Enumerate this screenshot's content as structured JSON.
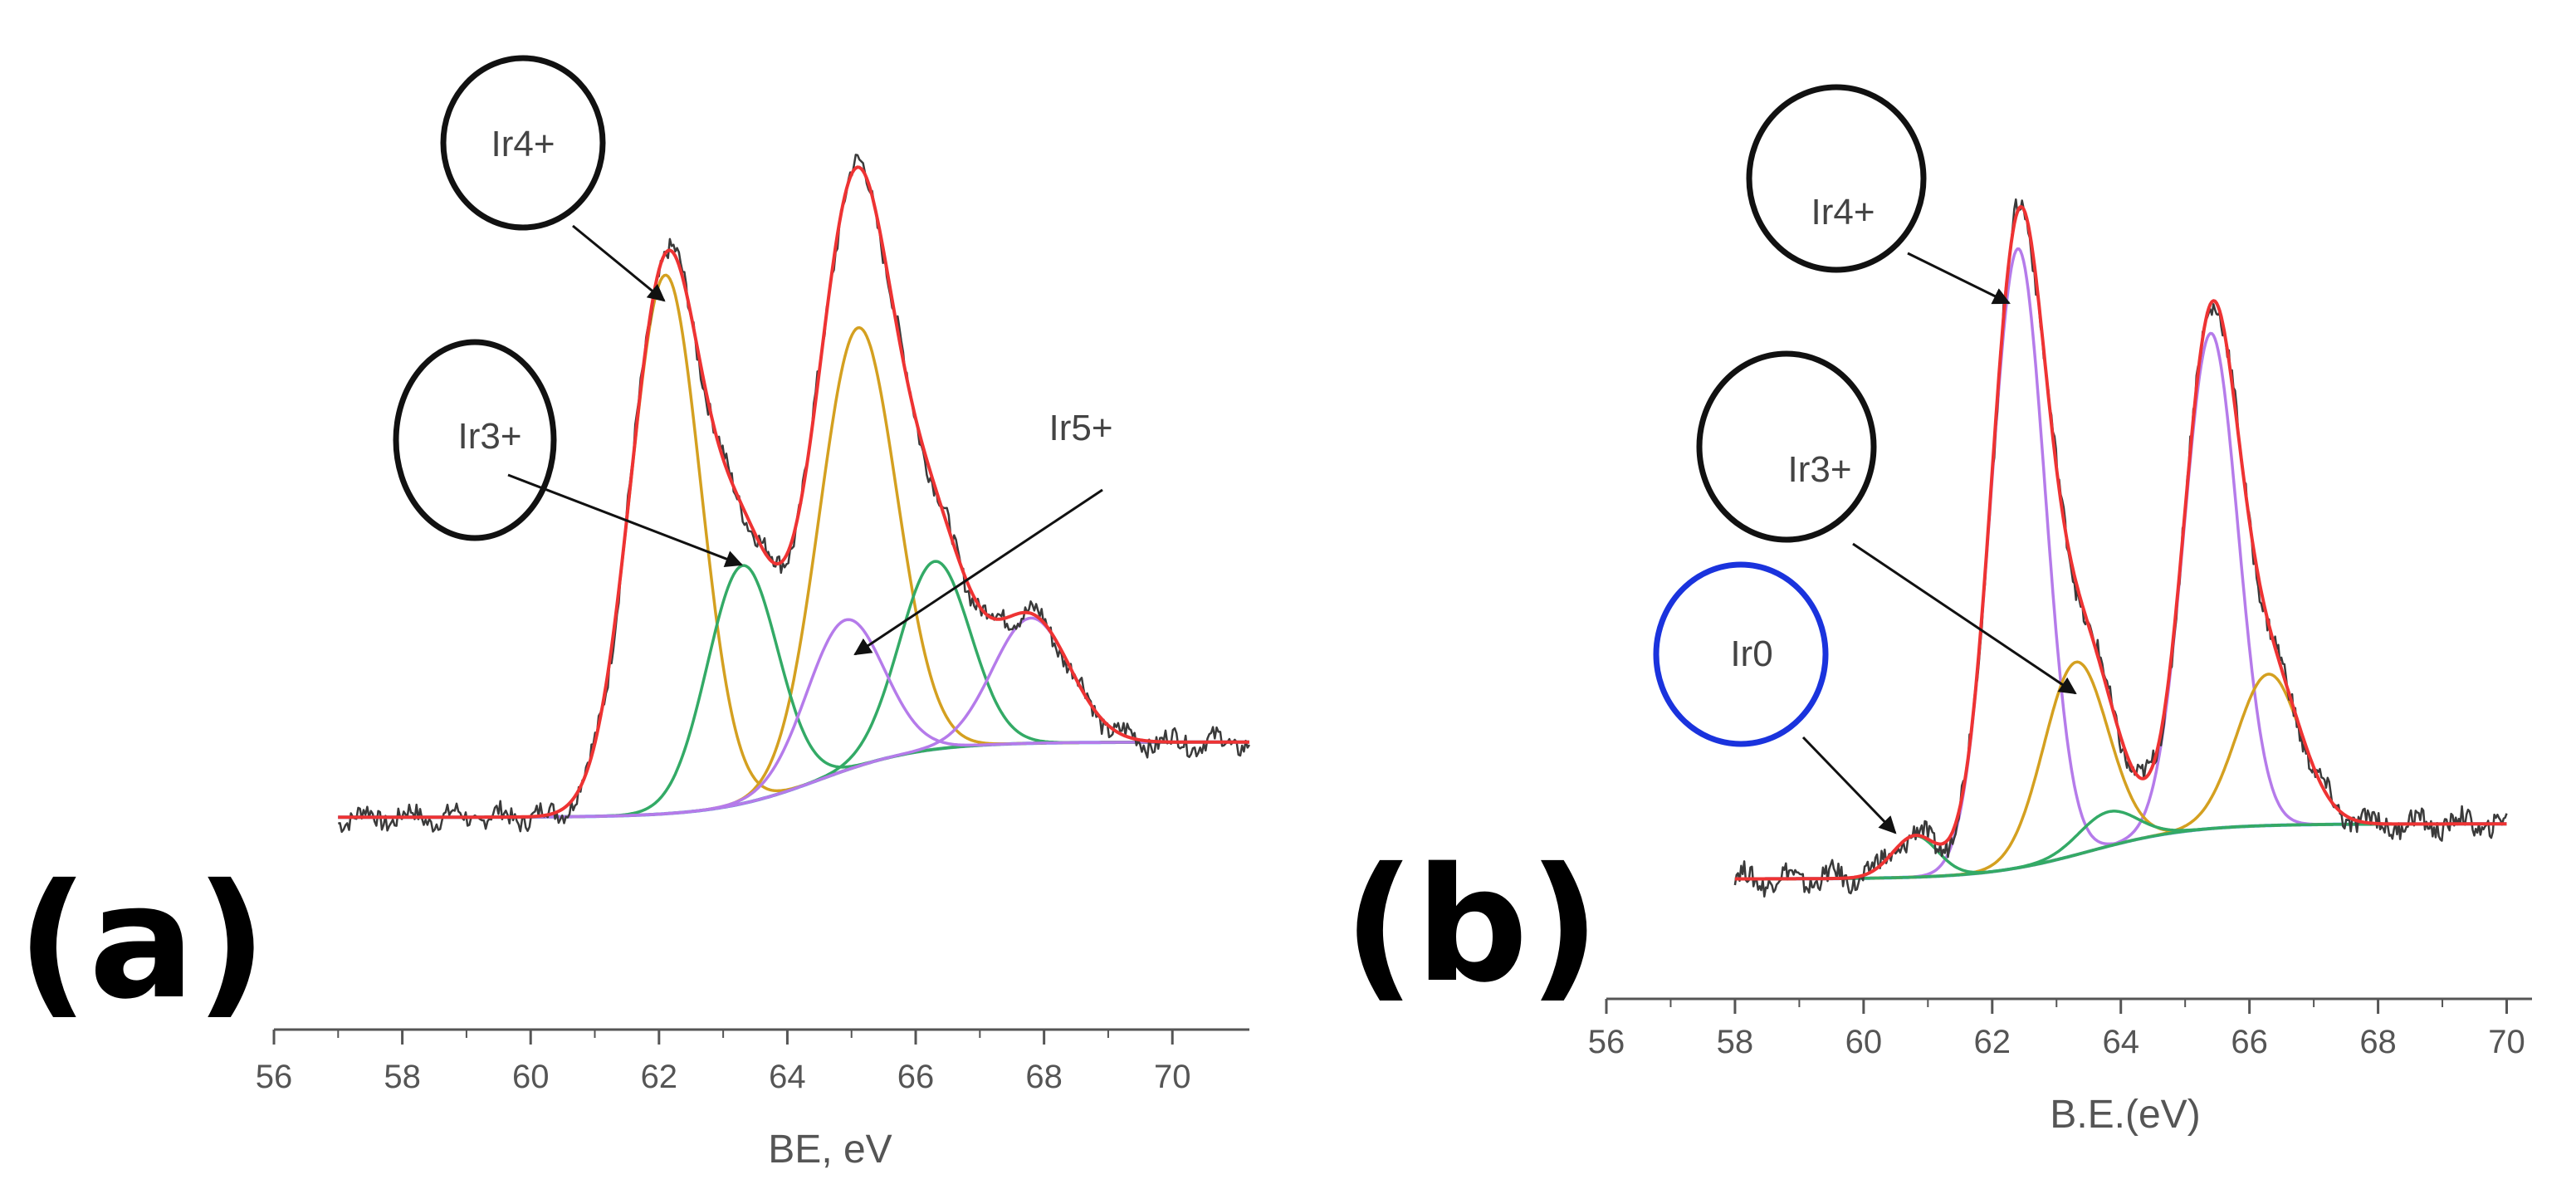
{
  "colors": {
    "raw": "#3a3a3a",
    "envelope": "#ee3333",
    "ir4": "#d4a020",
    "ir3": "#33aa66",
    "ir5": "#b57bea",
    "background": "#3b8ee8",
    "b_ir4": "#b57bea",
    "b_ir3": "#d4a020",
    "b_ir0": "#33aa66",
    "circle_black": "#111111",
    "circle_blue": "#1a33dd"
  },
  "chart_data": [
    {
      "type": "line",
      "panel_label": "(a)",
      "xlabel": "BE, eV",
      "ylabel": "",
      "xlim": [
        56,
        71.2
      ],
      "ylim": [
        -0.05,
        1.0
      ],
      "x_ticks": [
        "56",
        "58",
        "60",
        "62",
        "64",
        "66",
        "68",
        "70"
      ],
      "grid": false,
      "annotations": [
        "Ir4+",
        "Ir3+",
        "Ir5+"
      ],
      "baseline": {
        "x_start": 57.0,
        "x_end": 71.2,
        "low": 0.0,
        "high": 0.12,
        "step_center": 64.5,
        "step_width": 1.6
      },
      "components": [
        {
          "name": "Ir4+ 4f7/2",
          "color_key": "ir4",
          "center": 62.1,
          "height": 0.86,
          "sigma": 0.55
        },
        {
          "name": "Ir4+ 4f5/2",
          "color_key": "ir4",
          "center": 65.1,
          "height": 0.7,
          "sigma": 0.6
        },
        {
          "name": "Ir3+ 4f7/2",
          "color_key": "ir3",
          "center": 63.3,
          "height": 0.38,
          "sigma": 0.55
        },
        {
          "name": "Ir3+ 4f5/2",
          "color_key": "ir3",
          "center": 66.3,
          "height": 0.3,
          "sigma": 0.55
        },
        {
          "name": "Ir5+ 4f7/2",
          "color_key": "ir5",
          "center": 64.9,
          "height": 0.24,
          "sigma": 0.6
        },
        {
          "name": "Ir5+ 4f5/2",
          "color_key": "ir5",
          "center": 67.8,
          "height": 0.2,
          "sigma": 0.6
        }
      ]
    },
    {
      "type": "line",
      "panel_label": "(b)",
      "xlabel": "B.E.(eV)",
      "ylabel": "",
      "xlim": [
        56,
        70.2
      ],
      "ylim": [
        -0.05,
        1.0
      ],
      "x_ticks": [
        "56",
        "58",
        "60",
        "62",
        "64",
        "66",
        "68",
        "70"
      ],
      "grid": false,
      "annotations": [
        "Ir4+",
        "Ir3+",
        "Ir0"
      ],
      "baseline": {
        "x_start": 58.0,
        "x_end": 70.0,
        "low": 0.0,
        "high": 0.08,
        "step_center": 63.5,
        "step_width": 1.6
      },
      "components": [
        {
          "name": "Ir4+ 4f7/2",
          "color_key": "b_ir4",
          "center": 62.4,
          "height": 0.9,
          "sigma": 0.42
        },
        {
          "name": "Ir4+ 4f5/2",
          "color_key": "b_ir4",
          "center": 65.4,
          "height": 0.72,
          "sigma": 0.42
        },
        {
          "name": "Ir3+ 4f7/2",
          "color_key": "b_ir3",
          "center": 63.3,
          "height": 0.28,
          "sigma": 0.5
        },
        {
          "name": "Ir3+ 4f5/2",
          "color_key": "b_ir3",
          "center": 66.3,
          "height": 0.22,
          "sigma": 0.5
        },
        {
          "name": "Ir0 4f7/2",
          "color_key": "b_ir0",
          "center": 60.8,
          "height": 0.06,
          "sigma": 0.35
        },
        {
          "name": "Ir0 4f5/2",
          "color_key": "b_ir0",
          "center": 63.8,
          "height": 0.05,
          "sigma": 0.45
        }
      ]
    }
  ]
}
